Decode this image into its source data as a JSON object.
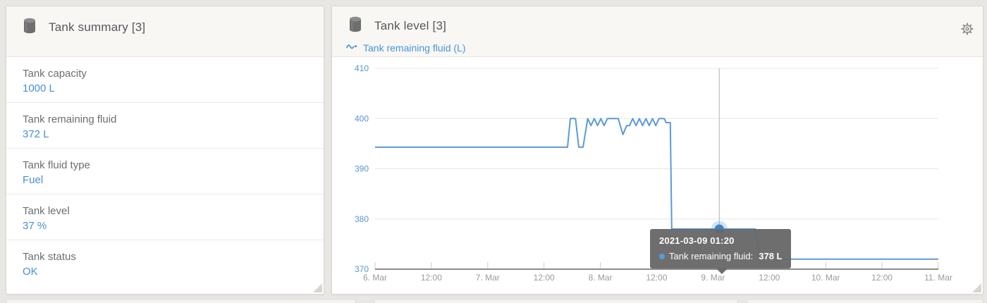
{
  "summary_panel": {
    "title": "Tank summary [3]",
    "rows": [
      {
        "label": "Tank capacity",
        "value": "1000 L"
      },
      {
        "label": "Tank remaining fluid",
        "value": "372 L"
      },
      {
        "label": "Tank fluid type",
        "value": "Fuel"
      },
      {
        "label": "Tank level",
        "value": "37 %"
      },
      {
        "label": "Tank status",
        "value": "OK"
      }
    ]
  },
  "chart_panel": {
    "title": "Tank level [3]",
    "legend": {
      "label": "Tank remaining fluid (L)"
    },
    "tooltip": {
      "title": "2021-03-09 01:20",
      "series_label": "Tank remaining fluid:",
      "value": "378 L"
    },
    "icons": {
      "panel_icon": "tank-icon",
      "legend_icon": "line-series-icon",
      "settings_icon": "gear-icon"
    }
  },
  "colors": {
    "accent_blue": "#4790d6",
    "line_blue": "#5b9bd5",
    "marker_blue": "#3d85c6",
    "tooltip_gray": "#686868",
    "axis_gray": "#8b8b8b"
  },
  "chart_data": {
    "type": "line",
    "title": "Tank level [3]",
    "xlabel": "",
    "ylabel": "",
    "x_ticks": [
      "6. Mar",
      "12:00",
      "7. Mar",
      "12:00",
      "8. Mar",
      "12:00",
      "9. Mar",
      "12:00",
      "10. Mar",
      "12:00",
      "11. Mar"
    ],
    "y_ticks": [
      370,
      380,
      390,
      400,
      410
    ],
    "ylim": [
      370,
      410
    ],
    "xlim_hours": [
      0,
      120
    ],
    "grid": "horizontal",
    "legend_position": "top-left",
    "line_color": "#5b9bd5",
    "series": [
      {
        "name": "Tank remaining fluid (L)",
        "points": [
          [
            0,
            394.3
          ],
          [
            41.0,
            394.3
          ],
          [
            41.6,
            400
          ],
          [
            42.7,
            400
          ],
          [
            43.4,
            394.3
          ],
          [
            44.3,
            394.3
          ],
          [
            45.3,
            400
          ],
          [
            46.0,
            398.6
          ],
          [
            46.7,
            400
          ],
          [
            47.4,
            398.6
          ],
          [
            48.1,
            400
          ],
          [
            48.8,
            398.6
          ],
          [
            49.5,
            400
          ],
          [
            51.8,
            400
          ],
          [
            52.8,
            396.8
          ],
          [
            53.6,
            398.6
          ],
          [
            54.2,
            398.6
          ],
          [
            54.9,
            400
          ],
          [
            55.6,
            398.6
          ],
          [
            56.3,
            400
          ],
          [
            57.0,
            398.6
          ],
          [
            57.7,
            400
          ],
          [
            58.4,
            398.6
          ],
          [
            59.1,
            400
          ],
          [
            59.8,
            398.6
          ],
          [
            60.5,
            400
          ],
          [
            61.6,
            400
          ],
          [
            62.0,
            399.2
          ],
          [
            62.9,
            399.2
          ],
          [
            63.2,
            378
          ],
          [
            81.0,
            378
          ],
          [
            82.0,
            372
          ],
          [
            120,
            372
          ]
        ]
      }
    ],
    "marker": {
      "t": 73.33,
      "v": 378,
      "label": "2021-03-09 01:20",
      "value_label": "378 L"
    },
    "crosshair_t": 73.33
  }
}
